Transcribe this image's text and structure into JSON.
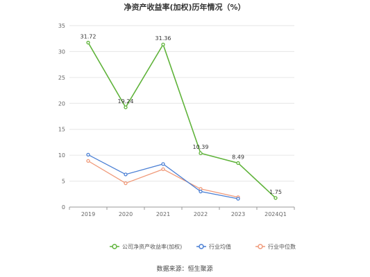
{
  "chart_data": {
    "type": "line",
    "title": "净资产收益率(加权)历年情况（%）",
    "categories": [
      "2019",
      "2020",
      "2021",
      "2022",
      "2023",
      "2024Q1"
    ],
    "ylim": [
      0,
      35
    ],
    "yticks": [
      0,
      5,
      10,
      15,
      20,
      25,
      30,
      35
    ],
    "grid": true,
    "legend_position": "bottom",
    "series": [
      {
        "name": "公司净资产收益率(加权)",
        "color": "#5fb33a",
        "values": [
          31.72,
          19.24,
          31.36,
          10.39,
          8.49,
          1.75
        ],
        "labels": [
          "31.72",
          "19.24",
          "31.36",
          "10.39",
          "8.49",
          "1.75"
        ]
      },
      {
        "name": "行业均值",
        "color": "#4a7fd4",
        "values": [
          10.1,
          6.3,
          8.3,
          3.0,
          1.6,
          null
        ]
      },
      {
        "name": "行业中位数",
        "color": "#f09a7a",
        "values": [
          8.9,
          4.6,
          7.3,
          3.5,
          1.9,
          null
        ]
      }
    ]
  },
  "source": "数据来源：恒生聚源"
}
